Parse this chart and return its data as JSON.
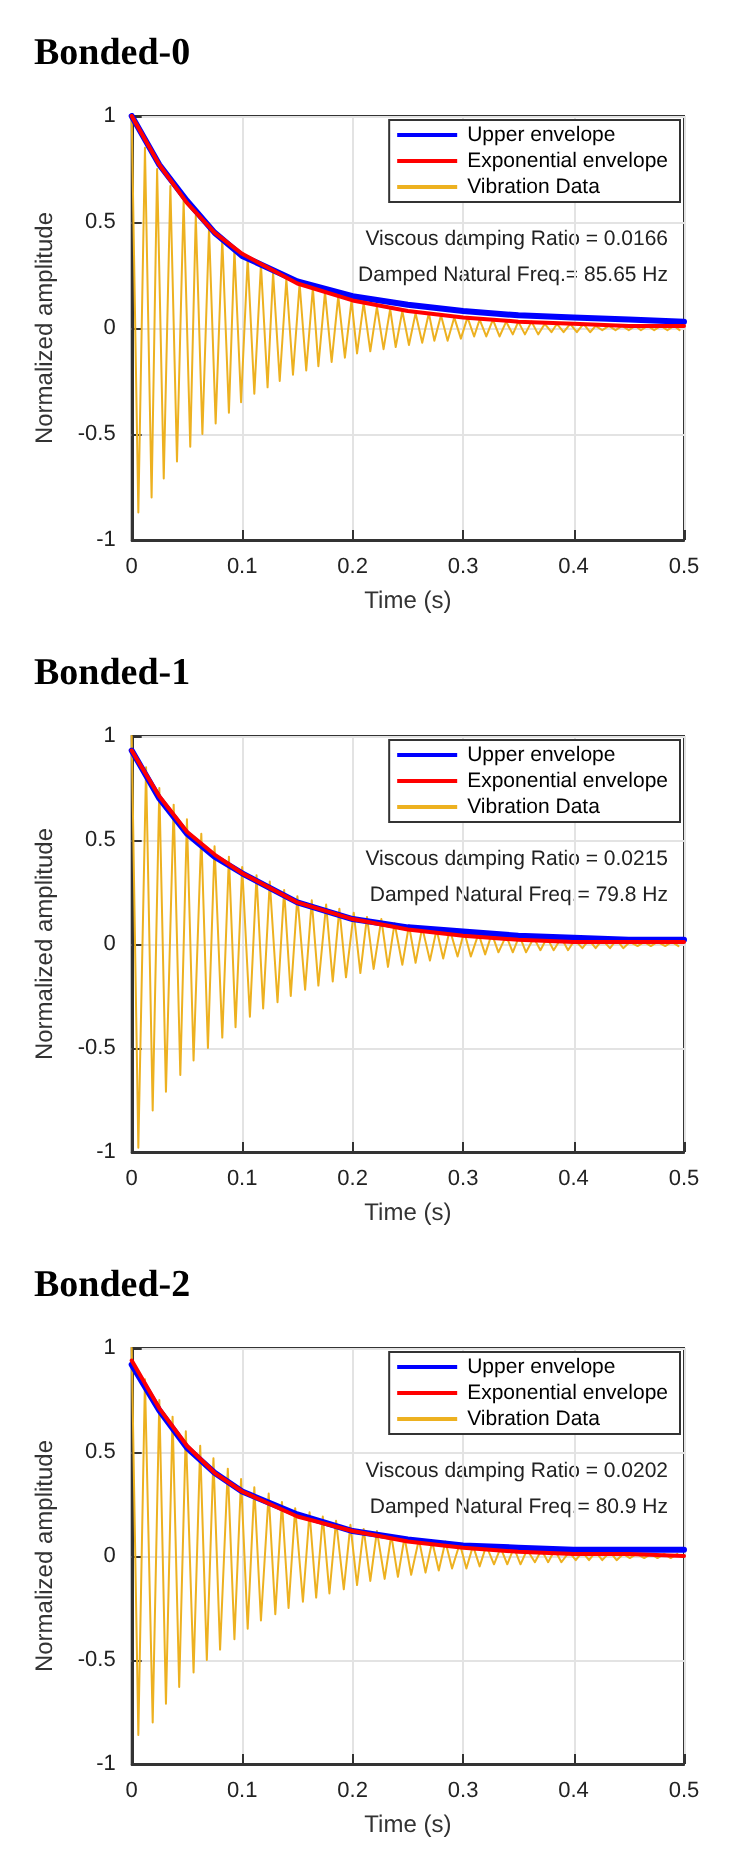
{
  "chart_data": [
    {
      "type": "line",
      "title": "Bonded-0",
      "xlabel": "Time (s)",
      "ylabel": "Normalized amplitude",
      "xlim": [
        0,
        0.5
      ],
      "xticks": [
        0,
        0.1,
        0.2,
        0.3,
        0.4,
        0.5
      ],
      "ylim": [
        -1,
        1
      ],
      "yticks": [
        -1,
        -0.5,
        0,
        0.5,
        1
      ],
      "grid": true,
      "legend": "top right",
      "marker": "none",
      "annotations": [
        "Viscous damping Ratio = 0.0166",
        "Damped Natural Freq.= 85.65 Hz"
      ],
      "series": [
        {
          "name": "Upper envelope",
          "color": "#0000ff",
          "x": [
            0,
            0.025,
            0.05,
            0.075,
            0.1,
            0.15,
            0.2,
            0.25,
            0.3,
            0.35,
            0.4,
            0.45,
            0.5
          ],
          "values": [
            1,
            0.77,
            0.6,
            0.45,
            0.34,
            0.22,
            0.15,
            0.11,
            0.08,
            0.06,
            0.05,
            0.04,
            0.03
          ]
        },
        {
          "name": "Exponential envelope",
          "color": "#ff0000",
          "x": [
            0,
            0.025,
            0.05,
            0.075,
            0.1,
            0.15,
            0.2,
            0.25,
            0.3,
            0.35,
            0.4,
            0.45,
            0.5
          ],
          "values": [
            1,
            0.77,
            0.59,
            0.45,
            0.35,
            0.21,
            0.13,
            0.08,
            0.05,
            0.03,
            0.02,
            0.01,
            0.01
          ]
        },
        {
          "name": "Vibration Data",
          "color": "#edb120",
          "x": [
            0,
            0.006,
            0.012,
            0.018,
            0.023,
            0.029,
            0.035,
            0.041,
            0.047,
            0.053,
            0.058,
            0.064,
            0.07,
            0.076,
            0.082,
            0.088,
            0.093,
            0.099,
            0.105,
            0.111,
            0.117,
            0.123,
            0.128,
            0.134,
            0.14,
            0.146,
            0.152,
            0.158,
            0.164,
            0.169,
            0.175,
            0.181,
            0.187,
            0.193,
            0.199,
            0.204,
            0.21,
            0.216,
            0.222,
            0.228,
            0.234,
            0.239,
            0.245,
            0.251,
            0.257,
            0.263,
            0.269,
            0.274,
            0.28,
            0.286,
            0.292,
            0.298,
            0.304,
            0.31,
            0.315,
            0.321,
            0.327,
            0.333,
            0.339,
            0.345,
            0.35,
            0.356,
            0.362,
            0.368,
            0.374,
            0.38,
            0.385,
            0.391,
            0.397,
            0.403,
            0.409,
            0.415,
            0.42,
            0.426,
            0.432,
            0.438,
            0.444,
            0.45,
            0.456,
            0.461,
            0.467,
            0.473,
            0.479,
            0.485,
            0.491,
            0.496
          ],
          "values": [
            1.0,
            -0.87,
            0.85,
            -0.8,
            0.75,
            -0.71,
            0.67,
            -0.63,
            0.6,
            -0.56,
            0.53,
            -0.5,
            0.47,
            -0.45,
            0.42,
            -0.4,
            0.37,
            -0.35,
            0.33,
            -0.31,
            0.3,
            -0.28,
            0.26,
            -0.25,
            0.23,
            -0.22,
            0.21,
            -0.2,
            0.19,
            -0.18,
            0.17,
            -0.16,
            0.15,
            -0.14,
            0.13,
            -0.12,
            0.12,
            -0.11,
            0.1,
            -0.1,
            0.09,
            -0.09,
            0.08,
            -0.08,
            0.07,
            -0.07,
            0.07,
            -0.06,
            0.06,
            -0.06,
            0.05,
            -0.05,
            0.05,
            -0.04,
            0.04,
            -0.04,
            0.04,
            -0.04,
            0.03,
            -0.03,
            0.03,
            -0.03,
            0.03,
            -0.03,
            0.02,
            -0.02,
            0.02,
            -0.02,
            0.02,
            -0.02,
            0.02,
            -0.02,
            0.01,
            -0.01,
            0.01,
            -0.01,
            0.01,
            -0.01,
            0.01,
            -0.01,
            0.01,
            -0.01,
            0.01,
            -0.01,
            0.01,
            -0.01
          ]
        }
      ]
    },
    {
      "type": "line",
      "title": "Bonded-1",
      "xlabel": "Time (s)",
      "ylabel": "Normalized amplitude",
      "xlim": [
        0,
        0.5
      ],
      "xticks": [
        0,
        0.1,
        0.2,
        0.3,
        0.4,
        0.5
      ],
      "ylim": [
        -1,
        1
      ],
      "yticks": [
        -1,
        -0.5,
        0,
        0.5,
        1
      ],
      "grid": true,
      "legend": "top right",
      "marker": "none",
      "annotations": [
        "Viscous damping Ratio = 0.0215",
        "Damped Natural Freq.= 79.8 Hz"
      ],
      "series": [
        {
          "name": "Upper envelope",
          "color": "#0000ff",
          "x": [
            0,
            0.025,
            0.05,
            0.075,
            0.1,
            0.15,
            0.2,
            0.25,
            0.3,
            0.35,
            0.4,
            0.45,
            0.5
          ],
          "values": [
            0.93,
            0.7,
            0.53,
            0.42,
            0.34,
            0.2,
            0.12,
            0.08,
            0.06,
            0.04,
            0.03,
            0.02,
            0.02
          ]
        },
        {
          "name": "Exponential envelope",
          "color": "#ff0000",
          "x": [
            0,
            0.025,
            0.05,
            0.075,
            0.1,
            0.15,
            0.2,
            0.25,
            0.3,
            0.35,
            0.4,
            0.45,
            0.5
          ],
          "values": [
            0.93,
            0.71,
            0.54,
            0.43,
            0.34,
            0.2,
            0.12,
            0.07,
            0.04,
            0.02,
            0.01,
            0.01,
            0.01
          ]
        },
        {
          "name": "Vibration Data",
          "color": "#edb120",
          "x": [
            0,
            0.006,
            0.013,
            0.019,
            0.025,
            0.031,
            0.038,
            0.044,
            0.05,
            0.056,
            0.063,
            0.069,
            0.075,
            0.082,
            0.088,
            0.094,
            0.1,
            0.107,
            0.113,
            0.119,
            0.125,
            0.132,
            0.138,
            0.144,
            0.15,
            0.157,
            0.163,
            0.169,
            0.176,
            0.182,
            0.188,
            0.194,
            0.201,
            0.207,
            0.213,
            0.219,
            0.226,
            0.232,
            0.238,
            0.245,
            0.251,
            0.257,
            0.263,
            0.27,
            0.276,
            0.282,
            0.288,
            0.295,
            0.301,
            0.307,
            0.314,
            0.32,
            0.326,
            0.332,
            0.339,
            0.345,
            0.351,
            0.357,
            0.364,
            0.37,
            0.376,
            0.382,
            0.389,
            0.395,
            0.401,
            0.408,
            0.414,
            0.42,
            0.426,
            0.433,
            0.439,
            0.445,
            0.451,
            0.458,
            0.464,
            0.47,
            0.476,
            0.483,
            0.489,
            0.495
          ],
          "values": [
            1.0,
            -0.98,
            0.85,
            -0.8,
            0.75,
            -0.71,
            0.67,
            -0.63,
            0.6,
            -0.56,
            0.53,
            -0.5,
            0.47,
            -0.45,
            0.42,
            -0.4,
            0.37,
            -0.35,
            0.33,
            -0.31,
            0.3,
            -0.28,
            0.26,
            -0.25,
            0.23,
            -0.22,
            0.21,
            -0.2,
            0.19,
            -0.18,
            0.17,
            -0.16,
            0.15,
            -0.14,
            0.13,
            -0.12,
            0.12,
            -0.11,
            0.1,
            -0.1,
            0.09,
            -0.09,
            0.08,
            -0.08,
            0.07,
            -0.07,
            0.07,
            -0.06,
            0.06,
            -0.06,
            0.05,
            -0.05,
            0.05,
            -0.04,
            0.04,
            -0.04,
            0.04,
            -0.04,
            0.03,
            -0.03,
            0.03,
            -0.03,
            0.03,
            -0.03,
            0.02,
            -0.02,
            0.02,
            -0.02,
            0.02,
            -0.02,
            0.02,
            -0.02,
            0.01,
            -0.01,
            0.01,
            -0.01,
            0.01,
            -0.01,
            0.01,
            -0.01
          ]
        }
      ]
    },
    {
      "type": "line",
      "title": "Bonded-2",
      "xlabel": "Time (s)",
      "ylabel": "Normalized amplitude",
      "xlim": [
        0,
        0.5
      ],
      "xticks": [
        0,
        0.1,
        0.2,
        0.3,
        0.4,
        0.5
      ],
      "ylim": [
        -1,
        1
      ],
      "yticks": [
        -1,
        -0.5,
        0,
        0.5,
        1
      ],
      "grid": true,
      "legend": "top right",
      "marker": "none",
      "annotations": [
        "Viscous damping Ratio = 0.0202",
        "Damped Natural Freq.= 80.9 Hz"
      ],
      "series": [
        {
          "name": "Upper envelope",
          "color": "#0000ff",
          "x": [
            0,
            0.025,
            0.05,
            0.075,
            0.1,
            0.15,
            0.2,
            0.25,
            0.3,
            0.35,
            0.4,
            0.45,
            0.5
          ],
          "values": [
            0.92,
            0.7,
            0.52,
            0.4,
            0.31,
            0.2,
            0.12,
            0.08,
            0.05,
            0.04,
            0.03,
            0.03,
            0.03
          ]
        },
        {
          "name": "Exponential envelope",
          "color": "#ff0000",
          "x": [
            0,
            0.025,
            0.05,
            0.075,
            0.1,
            0.15,
            0.2,
            0.25,
            0.3,
            0.35,
            0.4,
            0.45,
            0.5
          ],
          "values": [
            0.94,
            0.71,
            0.53,
            0.4,
            0.31,
            0.19,
            0.12,
            0.07,
            0.04,
            0.02,
            0.01,
            0.01,
            0
          ]
        },
        {
          "name": "Vibration Data",
          "color": "#edb120",
          "x": [
            0,
            0.006,
            0.012,
            0.019,
            0.025,
            0.031,
            0.037,
            0.043,
            0.049,
            0.056,
            0.062,
            0.068,
            0.074,
            0.08,
            0.087,
            0.093,
            0.099,
            0.105,
            0.111,
            0.117,
            0.124,
            0.13,
            0.136,
            0.142,
            0.148,
            0.155,
            0.161,
            0.167,
            0.173,
            0.179,
            0.185,
            0.192,
            0.198,
            0.204,
            0.21,
            0.216,
            0.222,
            0.229,
            0.235,
            0.241,
            0.247,
            0.253,
            0.26,
            0.266,
            0.272,
            0.278,
            0.284,
            0.29,
            0.297,
            0.303,
            0.309,
            0.315,
            0.321,
            0.328,
            0.334,
            0.34,
            0.346,
            0.352,
            0.358,
            0.365,
            0.371,
            0.377,
            0.383,
            0.389,
            0.396,
            0.402,
            0.408,
            0.414,
            0.42,
            0.426,
            0.433,
            0.439,
            0.445,
            0.451,
            0.457,
            0.464,
            0.47,
            0.476,
            0.482,
            0.488,
            0.494
          ],
          "values": [
            1.0,
            -0.86,
            0.85,
            -0.8,
            0.75,
            -0.71,
            0.67,
            -0.63,
            0.6,
            -0.56,
            0.53,
            -0.5,
            0.47,
            -0.45,
            0.42,
            -0.4,
            0.37,
            -0.35,
            0.33,
            -0.31,
            0.3,
            -0.28,
            0.26,
            -0.25,
            0.23,
            -0.22,
            0.21,
            -0.2,
            0.19,
            -0.18,
            0.17,
            -0.16,
            0.15,
            -0.14,
            0.13,
            -0.12,
            0.12,
            -0.11,
            0.1,
            -0.1,
            0.09,
            -0.09,
            0.08,
            -0.08,
            0.07,
            -0.07,
            0.07,
            -0.06,
            0.06,
            -0.06,
            0.05,
            -0.05,
            0.05,
            -0.04,
            0.04,
            -0.04,
            0.04,
            -0.04,
            0.03,
            -0.03,
            0.03,
            -0.03,
            0.03,
            -0.03,
            0.02,
            -0.02,
            0.02,
            -0.02,
            0.02,
            -0.02,
            0.02,
            -0.02,
            0.01,
            -0.01,
            0.01,
            -0.01,
            0.01,
            -0.01,
            0.01,
            -0.01,
            0.01
          ]
        }
      ]
    }
  ]
}
